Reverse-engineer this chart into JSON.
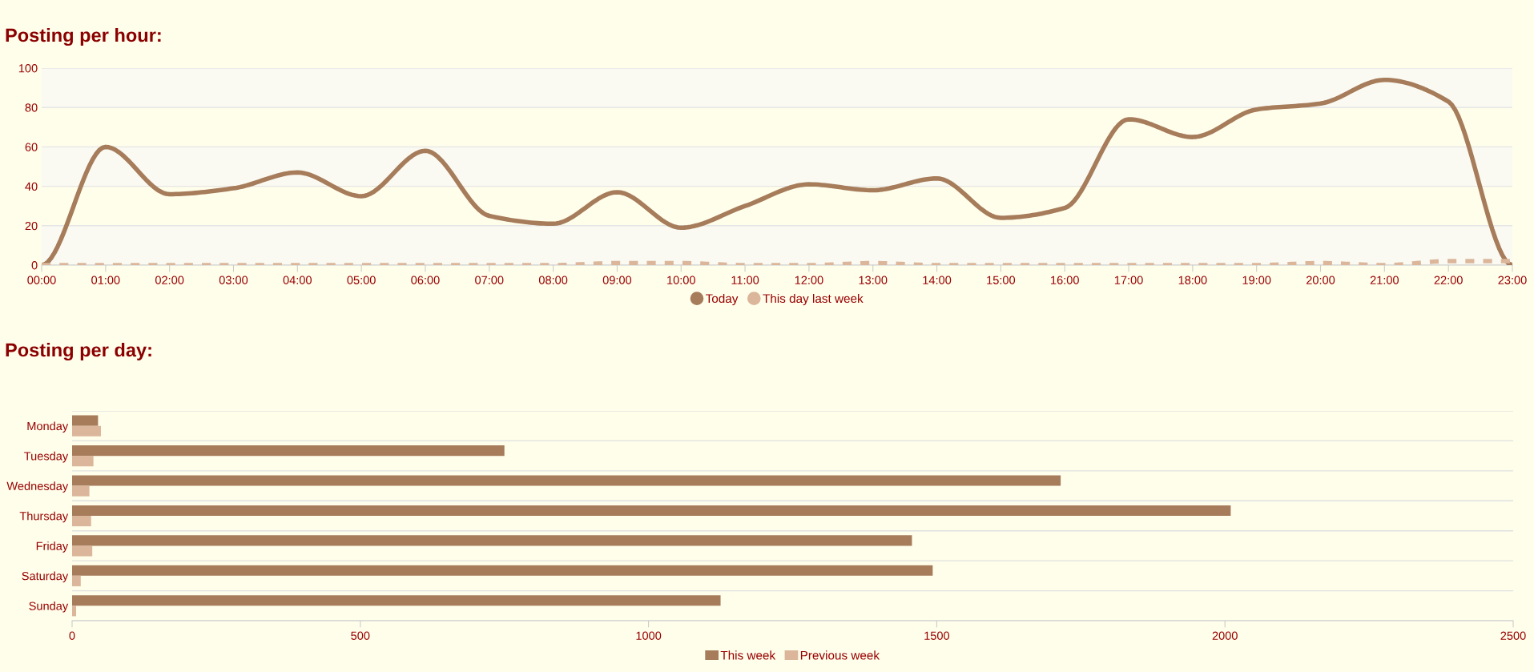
{
  "chart_data": [
    {
      "type": "line",
      "title": "Posting per hour:",
      "x": [
        0,
        1,
        2,
        3,
        4,
        5,
        6,
        7,
        8,
        9,
        10,
        11,
        12,
        13,
        14,
        15,
        16,
        17,
        18,
        19,
        20,
        21,
        22,
        23
      ],
      "series": [
        {
          "name": "Today",
          "color": "#a67c5b",
          "line_style": "solid",
          "values": [
            0,
            60,
            36,
            39,
            47,
            35,
            58,
            25,
            21,
            37,
            19,
            30,
            41,
            38,
            44,
            24,
            29,
            74,
            65,
            79,
            82,
            94,
            83,
            0
          ]
        },
        {
          "name": "This day last week",
          "color": "#dbb69b",
          "line_style": "dashed",
          "values": [
            0,
            0,
            0,
            0,
            0,
            0,
            0,
            0,
            0,
            1,
            1,
            0,
            0,
            1,
            0,
            0,
            0,
            0,
            0,
            0,
            1,
            0,
            2,
            2
          ]
        }
      ],
      "xlim": [
        0,
        23
      ],
      "xticks": [
        {
          "value": 0,
          "label": "00:00"
        },
        {
          "value": 1,
          "label": "01:00"
        },
        {
          "value": 2,
          "label": "02:00"
        },
        {
          "value": 3,
          "label": "03:00"
        },
        {
          "value": 4,
          "label": "04:00"
        },
        {
          "value": 5,
          "label": "05:00"
        },
        {
          "value": 6,
          "label": "06:00"
        },
        {
          "value": 7,
          "label": "07:00"
        },
        {
          "value": 8,
          "label": "08:00"
        },
        {
          "value": 9,
          "label": "09:00"
        },
        {
          "value": 10,
          "label": "10:00"
        },
        {
          "value": 11,
          "label": "11:00"
        },
        {
          "value": 12,
          "label": "12:00"
        },
        {
          "value": 13,
          "label": "13:00"
        },
        {
          "value": 14,
          "label": "14:00"
        },
        {
          "value": 15,
          "label": "15:00"
        },
        {
          "value": 16,
          "label": "16:00"
        },
        {
          "value": 17,
          "label": "17:00"
        },
        {
          "value": 18,
          "label": "18:00"
        },
        {
          "value": 19,
          "label": "19:00"
        },
        {
          "value": 20,
          "label": "20:00"
        },
        {
          "value": 21,
          "label": "21:00"
        },
        {
          "value": 22,
          "label": "22:00"
        },
        {
          "value": 23,
          "label": "23:00"
        }
      ],
      "ylim": [
        0,
        100
      ],
      "yticks": [
        0,
        20,
        40,
        60,
        80,
        100
      ],
      "grid": "y",
      "legend": "bottom",
      "marker": "none"
    },
    {
      "type": "bar",
      "title": "Posting per day:",
      "orientation": "horizontal",
      "categories": [
        "Monday",
        "Tuesday",
        "Wednesday",
        "Thursday",
        "Friday",
        "Saturday",
        "Sunday"
      ],
      "series": [
        {
          "name": "This week",
          "color": "#a67c5b",
          "values": [
            45,
            750,
            1715,
            2010,
            1457,
            1493,
            1125
          ]
        },
        {
          "name": "Previous week",
          "color": "#dbb69b",
          "values": [
            50,
            37,
            30,
            33,
            35,
            15,
            7
          ]
        }
      ],
      "xlim": [
        0,
        2500
      ],
      "xticks": [
        0,
        500,
        1000,
        1500,
        2000,
        2500
      ],
      "grid": "y",
      "legend": "bottom"
    }
  ]
}
